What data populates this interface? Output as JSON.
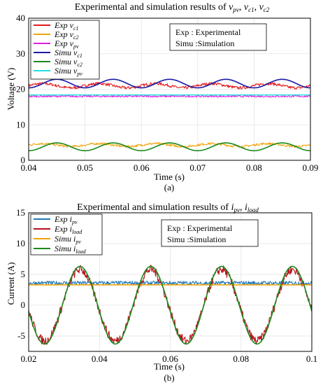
{
  "chart_data": [
    {
      "type": "line",
      "title": "Experimental and simulation results of v_pv, v_c1, v_c2",
      "xlabel": "Time (s)",
      "ylabel": "Voltage (V)",
      "caption": "(a)",
      "xlim": [
        0.04,
        0.09
      ],
      "ylim": [
        0,
        40
      ],
      "xticks": [
        "0.04",
        "0.05",
        "0.06",
        "0.07",
        "0.08",
        "0.09"
      ],
      "yticks": [
        "0",
        "10",
        "20",
        "30",
        "40"
      ],
      "grid": true,
      "legend_position": "top-left",
      "note_lines": [
        "Exp : Experimental",
        "Simu :Simulation"
      ],
      "series": [
        {
          "name": "Exp v_c1",
          "color": "#e31a1c",
          "kind": "noisy",
          "offset": 21.0,
          "amp": 0.6,
          "period": 0.01,
          "phase": 0.0,
          "noise": 0.5
        },
        {
          "name": "Exp v_c2",
          "color": "#f0a30a",
          "kind": "noisy",
          "offset": 4.3,
          "amp": 0.4,
          "period": 0.01,
          "phase": 0.0,
          "noise": 0.4
        },
        {
          "name": "Exp v_pv",
          "color": "#e020e0",
          "kind": "noisy",
          "offset": 18.0,
          "amp": 0.0,
          "period": 0.01,
          "phase": 0.0,
          "noise": 0.3
        },
        {
          "name": "Simu v_c1",
          "color": "#1a1aa6",
          "kind": "sine",
          "offset": 21.6,
          "amp": 1.2,
          "period": 0.01,
          "phase": -0.0025
        },
        {
          "name": "Simu v_c2",
          "color": "#1a8a1a",
          "kind": "sine",
          "offset": 3.8,
          "amp": 1.1,
          "period": 0.01,
          "phase": -0.0025
        },
        {
          "name": "Simu v_pv",
          "color": "#20e0e0",
          "kind": "sine",
          "offset": 18.4,
          "amp": 0.0,
          "period": 0.01,
          "phase": 0.0
        }
      ]
    },
    {
      "type": "line",
      "title": "Experimental and simulation results of i_pv, i_load",
      "xlabel": "Time (s)",
      "ylabel": "Current (A)",
      "caption": "(b)",
      "xlim": [
        0.02,
        0.1
      ],
      "ylim": [
        -7.5,
        15
      ],
      "xticks": [
        "0.02",
        "0.04",
        "0.06",
        "0.08",
        "0.1"
      ],
      "yticks": [
        "-5",
        "0",
        "5",
        "10",
        "15"
      ],
      "grid": true,
      "legend_position": "top-left",
      "note_lines": [
        "Exp : Experimental",
        "Simu :Simulation"
      ],
      "series": [
        {
          "name": "Exp i_pv",
          "color": "#1f77b4",
          "kind": "noisy",
          "offset": 3.6,
          "amp": 0.0,
          "period": 0.02,
          "phase": 0.0,
          "noise": 0.4
        },
        {
          "name": "Exp i_load",
          "color": "#b5121b",
          "kind": "noisy",
          "offset": 0.0,
          "amp": 5.8,
          "period": 0.02,
          "phase": -0.0295,
          "noise": 0.9
        },
        {
          "name": "Simu i_pv",
          "color": "#f0a30a",
          "kind": "sine",
          "offset": 3.3,
          "amp": 0.0,
          "period": 0.02,
          "phase": 0.0
        },
        {
          "name": "Simu i_load",
          "color": "#1a8a1a",
          "kind": "sine",
          "offset": 0.0,
          "amp": 6.3,
          "period": 0.02,
          "phase": -0.0295
        }
      ]
    }
  ]
}
